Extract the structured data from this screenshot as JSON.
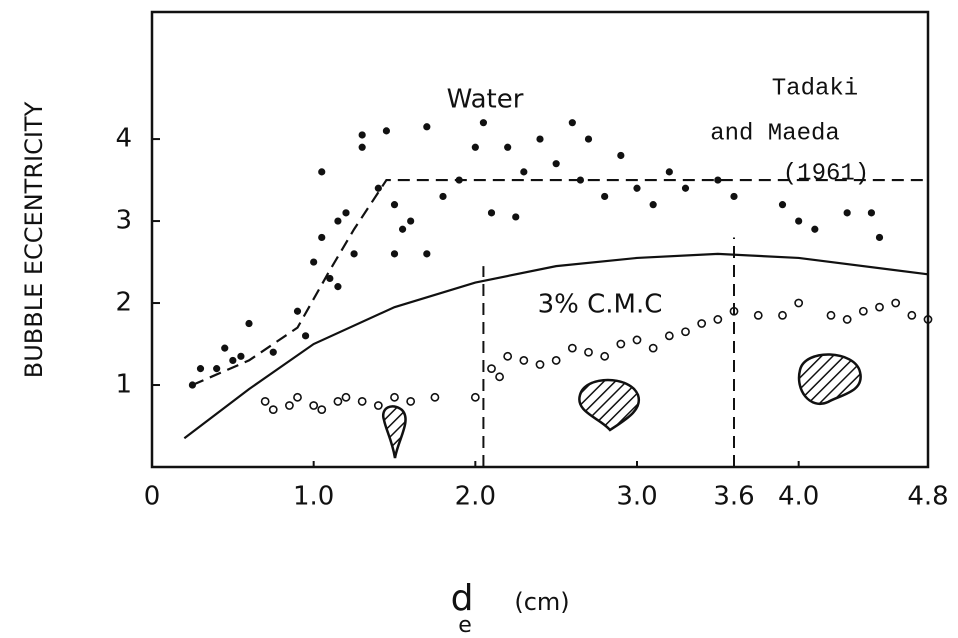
{
  "chart_data": {
    "type": "scatter",
    "y_label": "BUBBLE   ECCENTRICITY",
    "x_label": "d",
    "x_label_sub": "e",
    "x_label_unit": "(cm)",
    "annotations": [
      "Water",
      "Tadaki",
      "and Maeda",
      "(1961)",
      "3% C.M.C"
    ],
    "xlim": [
      0,
      4.8
    ],
    "ylim": [
      0,
      5.55
    ],
    "xticks": [
      0,
      {
        "value": 1.0,
        "label": "1.0"
      },
      {
        "value": 2.0,
        "label": "2.0"
      },
      {
        "value": 3.0,
        "label": "3.0"
      },
      3.6,
      {
        "value": 4.0,
        "label": "4.0"
      },
      4.8
    ],
    "yticks": [
      1,
      2,
      3,
      4
    ],
    "series": [
      {
        "marker": "dot",
        "color": "#111",
        "x": [
          0.25,
          0.3,
          0.4,
          0.45,
          0.5,
          0.55,
          0.6,
          0.75,
          0.9,
          0.95,
          1.0,
          1.05,
          1.1,
          1.15,
          1.2,
          1.05,
          1.3,
          1.3,
          1.4,
          1.5,
          1.55,
          1.6,
          1.7,
          1.5,
          1.7,
          1.8,
          1.9,
          2.0,
          2.05,
          2.1,
          2.2,
          2.3,
          2.4,
          2.5,
          2.6,
          2.65,
          2.7,
          2.8,
          2.9,
          3.0,
          3.1,
          3.2,
          3.3,
          3.5,
          3.6,
          3.9,
          4.0,
          4.1,
          4.3,
          4.5,
          4.45,
          2.25,
          1.45,
          1.15,
          1.25
        ],
        "values": [
          1.0,
          1.2,
          1.2,
          1.45,
          1.3,
          1.35,
          1.75,
          1.4,
          1.9,
          1.6,
          2.5,
          2.8,
          2.3,
          2.2,
          3.1,
          3.6,
          3.9,
          4.05,
          3.4,
          3.2,
          2.9,
          3.0,
          2.6,
          2.6,
          4.15,
          3.3,
          3.5,
          3.9,
          4.2,
          3.1,
          3.9,
          3.6,
          4.0,
          3.7,
          4.2,
          3.5,
          4.0,
          3.3,
          3.8,
          3.4,
          3.2,
          3.6,
          3.4,
          3.5,
          3.3,
          3.2,
          3.0,
          2.9,
          3.1,
          2.8,
          3.1,
          3.05,
          4.1,
          3.0,
          2.6
        ]
      },
      {
        "marker": "circle",
        "color": "#111",
        "x": [
          0.7,
          0.75,
          0.85,
          0.9,
          1.0,
          1.05,
          1.15,
          1.2,
          1.3,
          1.4,
          1.5,
          1.6,
          1.75,
          2.0,
          2.1,
          2.15,
          2.2,
          2.3,
          2.4,
          2.5,
          2.6,
          2.7,
          2.8,
          2.9,
          3.0,
          3.1,
          3.2,
          3.3,
          3.4,
          3.5,
          3.6,
          3.75,
          3.9,
          4.0,
          4.2,
          4.3,
          4.4,
          4.5,
          4.6,
          4.7,
          4.8
        ],
        "values": [
          0.8,
          0.7,
          0.75,
          0.85,
          0.75,
          0.7,
          0.8,
          0.85,
          0.8,
          0.75,
          0.85,
          0.8,
          0.85,
          0.85,
          1.2,
          1.1,
          1.35,
          1.3,
          1.25,
          1.3,
          1.45,
          1.4,
          1.35,
          1.5,
          1.55,
          1.45,
          1.6,
          1.65,
          1.75,
          1.8,
          1.9,
          1.85,
          1.85,
          2.0,
          1.85,
          1.8,
          1.9,
          1.95,
          2.0,
          1.85,
          1.8
        ]
      }
    ],
    "lines": [
      {
        "dash": true,
        "x": [
          0.25,
          0.6,
          0.9,
          1.1,
          1.25,
          1.45,
          4.8
        ],
        "values": [
          1.0,
          1.3,
          1.7,
          2.4,
          2.9,
          3.5,
          3.5
        ]
      },
      {
        "dash": false,
        "x": [
          0.2,
          0.6,
          1.0,
          1.5,
          2.0,
          2.5,
          3.0,
          3.5,
          4.0,
          4.8
        ],
        "values": [
          0.35,
          0.95,
          1.5,
          1.95,
          2.25,
          2.45,
          2.55,
          2.6,
          2.55,
          2.35
        ]
      }
    ],
    "vlines": [
      {
        "x": 2.05,
        "top": 2.45
      },
      {
        "x": 3.6,
        "top": 2.8
      }
    ]
  }
}
